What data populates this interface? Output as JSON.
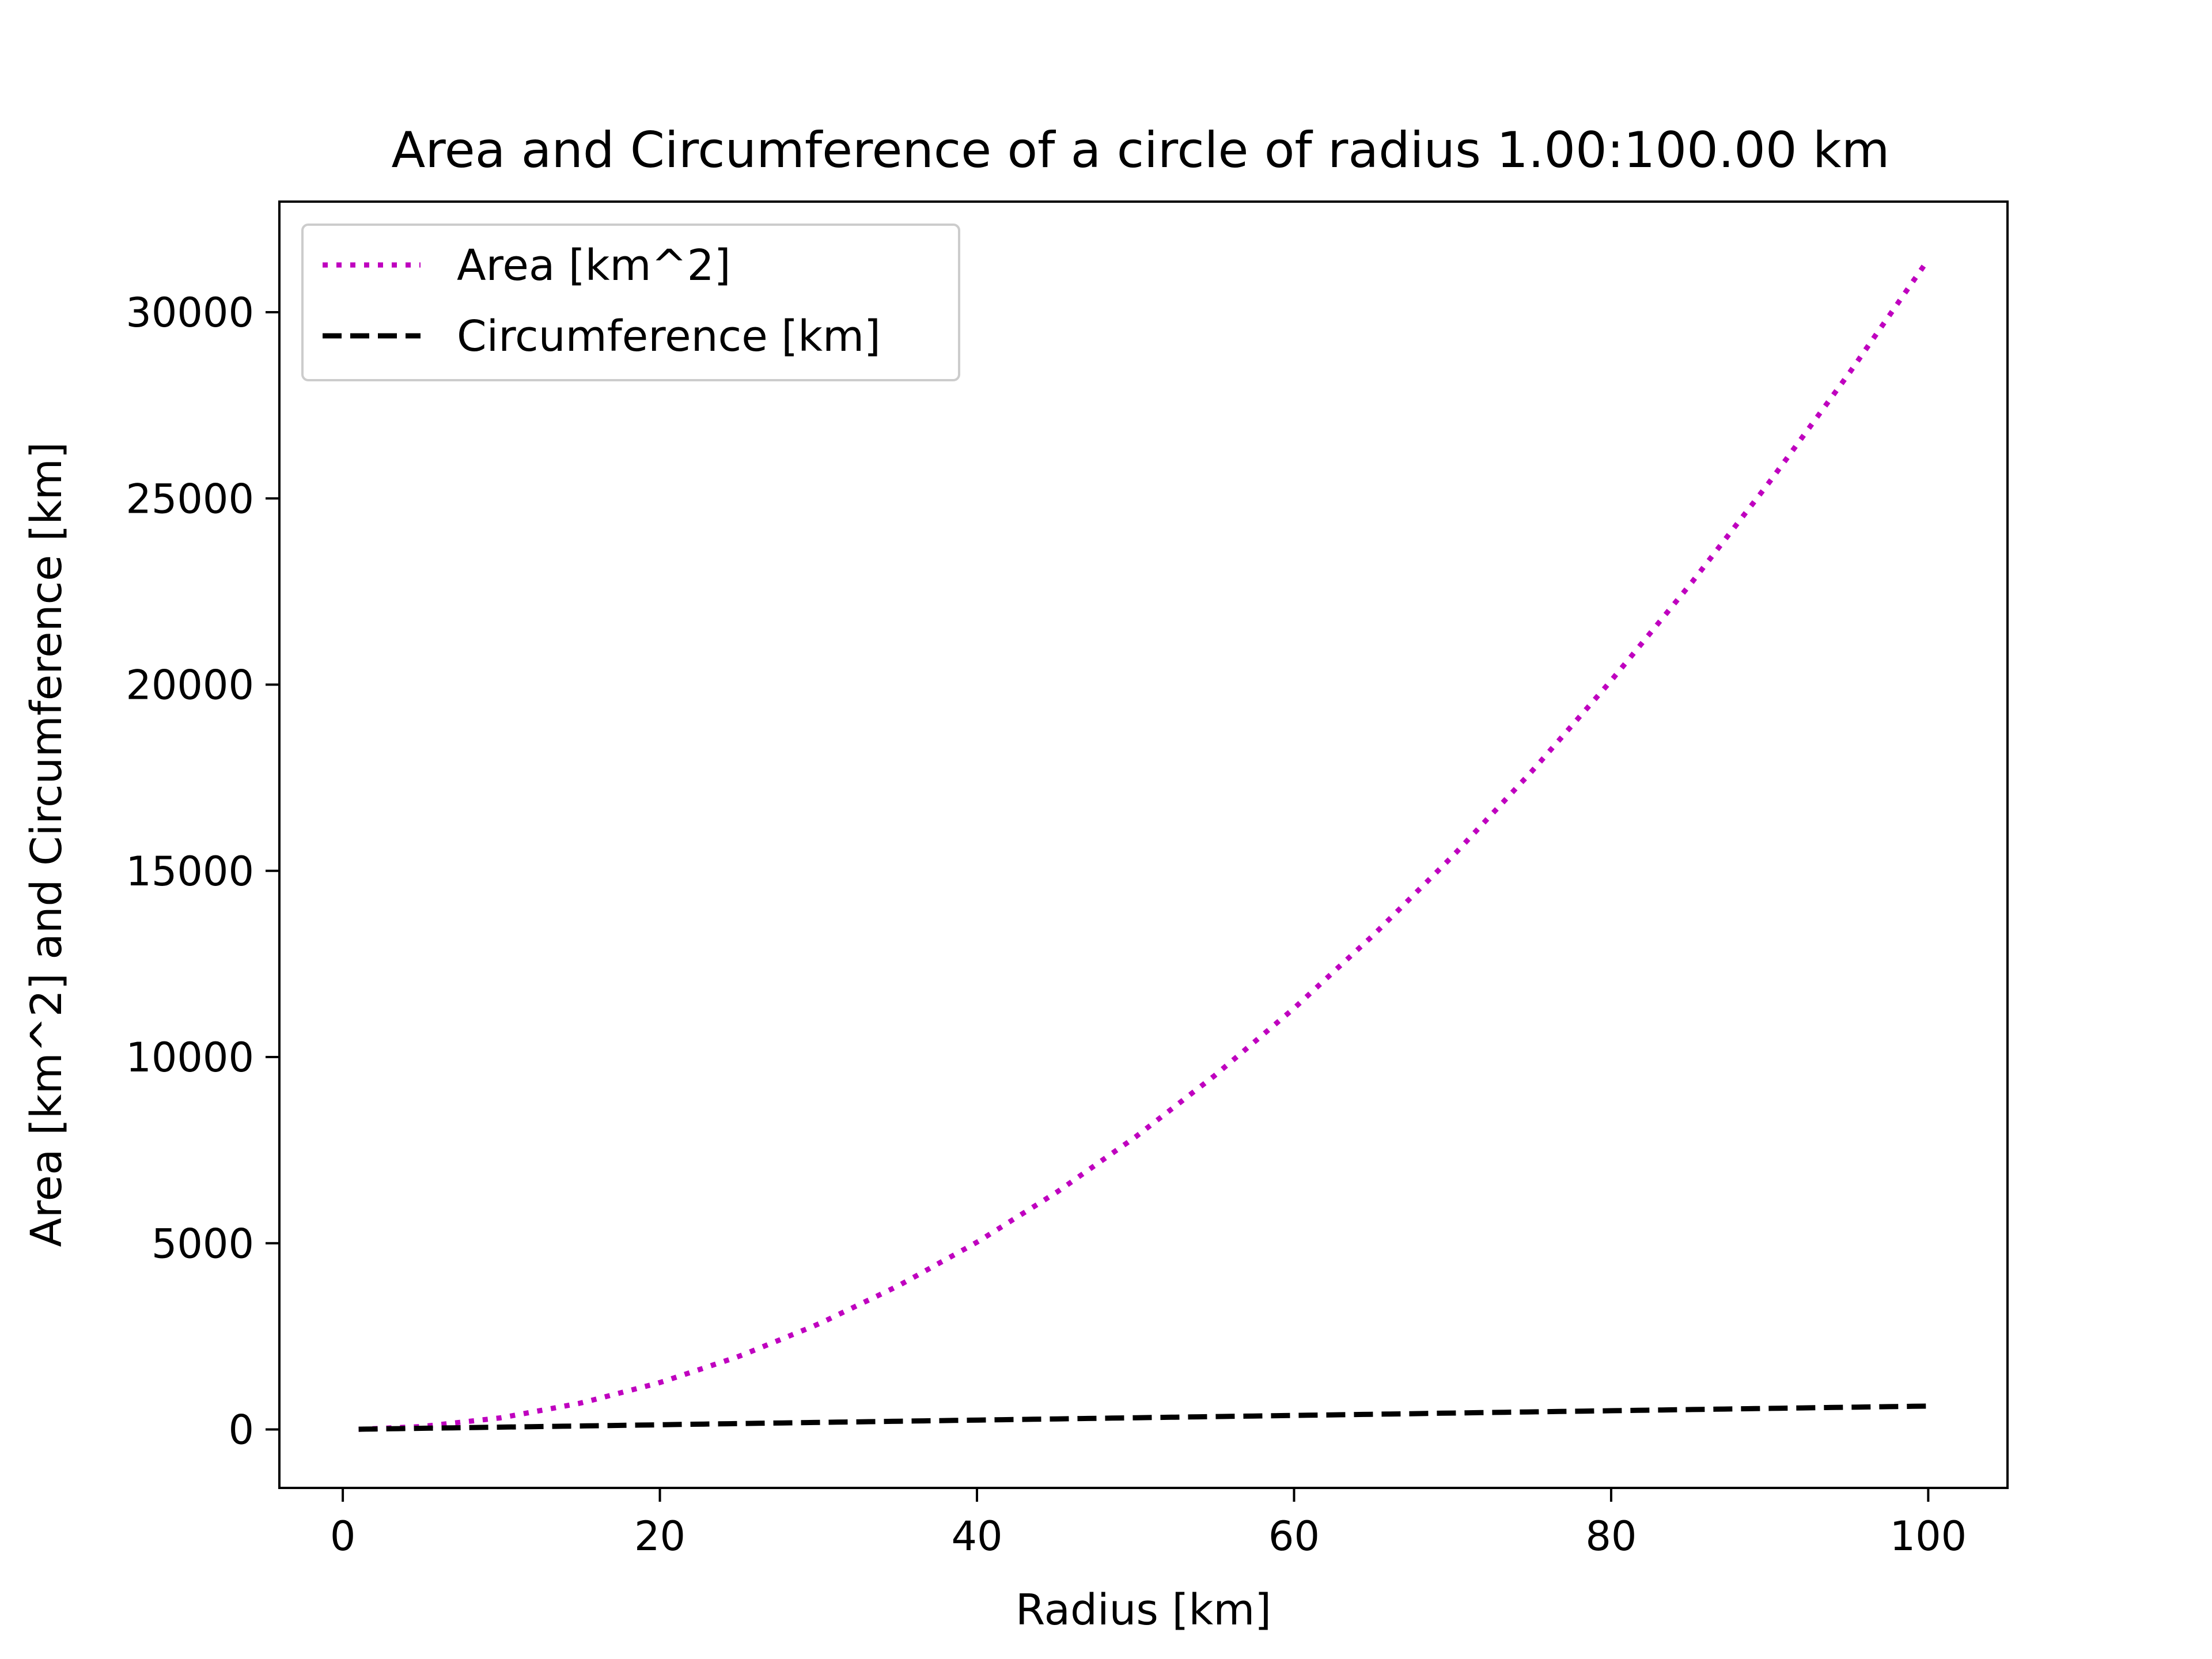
{
  "chart_data": {
    "type": "line",
    "title": "Area and Circumference of a circle of radius 1.00:100.00 km",
    "xlabel": "Radius [km]",
    "ylabel": "Area [km^2] and Circumference [km]",
    "xlim": [
      -4,
      105
    ],
    "ylim": [
      -1570,
      32970
    ],
    "xticks": [
      0,
      20,
      40,
      60,
      80,
      100
    ],
    "xtick_labels": [
      "0",
      "20",
      "40",
      "60",
      "80",
      "100"
    ],
    "yticks": [
      0,
      5000,
      10000,
      15000,
      20000,
      25000,
      30000
    ],
    "ytick_labels": [
      "0",
      "5000",
      "10000",
      "15000",
      "20000",
      "25000",
      "30000"
    ],
    "grid": false,
    "legend_position": "top-left",
    "series": [
      {
        "name": "Area [km^2]",
        "color": "#bf00bf",
        "style": "dotted",
        "x": [
          1,
          5,
          10,
          15,
          20,
          25,
          30,
          35,
          40,
          45,
          50,
          55,
          60,
          65,
          70,
          75,
          80,
          85,
          90,
          95,
          100
        ],
        "y": [
          3.14,
          78.5,
          314.2,
          706.9,
          1256.6,
          1963.5,
          2827.4,
          3848.5,
          5026.5,
          6361.7,
          7854.0,
          9503.3,
          11309.7,
          13273.2,
          15393.8,
          17671.5,
          20106.2,
          22698.0,
          25446.9,
          28352.9,
          31415.9
        ]
      },
      {
        "name": "Circumference [km]",
        "color": "#000000",
        "style": "dashed",
        "x": [
          1,
          5,
          10,
          15,
          20,
          25,
          30,
          35,
          40,
          45,
          50,
          55,
          60,
          65,
          70,
          75,
          80,
          85,
          90,
          95,
          100
        ],
        "y": [
          6.28,
          31.4,
          62.8,
          94.2,
          125.7,
          157.1,
          188.5,
          219.9,
          251.3,
          282.7,
          314.2,
          345.6,
          377.0,
          408.4,
          439.8,
          471.2,
          502.7,
          534.1,
          565.5,
          596.9,
          628.3
        ]
      }
    ]
  }
}
